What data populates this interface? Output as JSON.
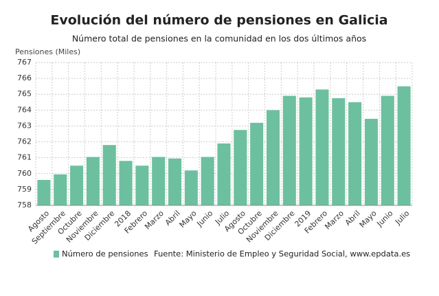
{
  "chart_data": {
    "type": "bar",
    "title": "Evolución del número de pensiones en Galicia",
    "subtitle": "Número total de pensiones en la comunidad en los dos últimos años",
    "y_label": "Pensiones (Miles)",
    "source": "Fuente: Ministerio de Empleo y Seguridad Social, www.epdata.es",
    "categories": [
      "Agosto",
      "Septiembre",
      "Octubre",
      "Noviembre",
      "Diciembre",
      "2018",
      "Febrero",
      "Marzo",
      "Abril",
      "Mayo",
      "Junio",
      "Julio",
      "Agosto",
      "Octubre",
      "Noviembre",
      "Diciembre",
      "2019",
      "Febrero",
      "Marzo",
      "Abril",
      "Mayo",
      "Junio",
      "Julio"
    ],
    "series": [
      {
        "name": "Número de pensiones",
        "color": "#6cc0a0",
        "values": [
          759.6,
          759.95,
          760.5,
          761.05,
          761.8,
          760.8,
          760.5,
          761.05,
          760.95,
          760.2,
          761.05,
          761.9,
          762.75,
          763.2,
          764.0,
          764.9,
          764.8,
          765.3,
          764.75,
          764.5,
          763.45,
          764.9,
          765.5
        ]
      }
    ],
    "ylim": [
      758,
      767
    ],
    "yticks": [
      758,
      759,
      760,
      761,
      762,
      763,
      764,
      765,
      766,
      767
    ],
    "grid": true
  }
}
